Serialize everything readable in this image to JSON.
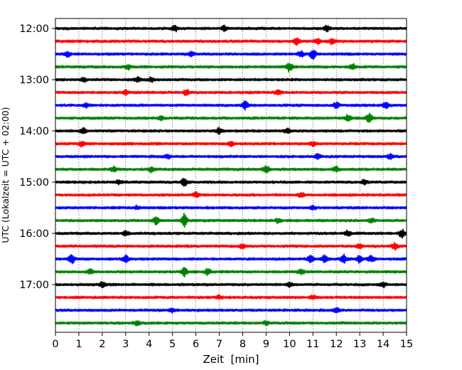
{
  "chart_data": {
    "type": "line",
    "title": "",
    "xlabel": "Zeit  [min]",
    "ylabel": "UTC (Lokalzeit = UTC + 02:00)",
    "xlim": [
      0,
      15
    ],
    "x_ticks": [
      "0",
      "1",
      "2",
      "3",
      "4",
      "5",
      "6",
      "7",
      "8",
      "9",
      "10",
      "11",
      "12",
      "13",
      "14",
      "15"
    ],
    "y_ticks": [
      {
        "label": "12:00",
        "row": 0
      },
      {
        "label": "13:00",
        "row": 4
      },
      {
        "label": "14:00",
        "row": 8
      },
      {
        "label": "15:00",
        "row": 12
      },
      {
        "label": "16:00",
        "row": 16
      },
      {
        "label": "17:00",
        "row": 20
      }
    ],
    "grid": {
      "x": true,
      "y": false,
      "style": "dotted"
    },
    "row_minutes": 15,
    "row_colors": [
      "#000000",
      "#ff0000",
      "#0000ff",
      "#008000"
    ],
    "rows": [
      {
        "start": "12:00",
        "bursts": [
          [
            5.1,
            0.6
          ],
          [
            7.2,
            0.5
          ],
          [
            11.6,
            0.6
          ]
        ]
      },
      {
        "start": "12:15",
        "bursts": [
          [
            10.3,
            0.8
          ],
          [
            11.2,
            0.6
          ],
          [
            11.8,
            0.5
          ]
        ]
      },
      {
        "start": "12:30",
        "bursts": [
          [
            0.5,
            0.6
          ],
          [
            11.0,
            1.1
          ],
          [
            10.5,
            0.6
          ],
          [
            5.8,
            0.5
          ]
        ]
      },
      {
        "start": "12:45",
        "bursts": [
          [
            10.0,
            1.0
          ],
          [
            3.1,
            0.5
          ],
          [
            12.7,
            0.6
          ]
        ]
      },
      {
        "start": "13:00",
        "bursts": [
          [
            1.2,
            0.5
          ],
          [
            3.5,
            0.5
          ],
          [
            4.1,
            0.5
          ]
        ]
      },
      {
        "start": "13:15",
        "bursts": [
          [
            3.0,
            0.5
          ],
          [
            5.6,
            0.6
          ],
          [
            9.5,
            0.5
          ]
        ]
      },
      {
        "start": "13:30",
        "bursts": [
          [
            8.1,
            0.9
          ],
          [
            12.0,
            0.7
          ],
          [
            14.1,
            0.7
          ],
          [
            1.3,
            0.5
          ]
        ]
      },
      {
        "start": "13:45",
        "bursts": [
          [
            13.4,
            1.0
          ],
          [
            12.5,
            0.7
          ],
          [
            4.5,
            0.5
          ]
        ]
      },
      {
        "start": "14:00",
        "bursts": [
          [
            1.2,
            0.5
          ],
          [
            7.0,
            0.6
          ],
          [
            9.9,
            0.5
          ]
        ]
      },
      {
        "start": "14:15",
        "bursts": [
          [
            1.1,
            0.5
          ],
          [
            7.5,
            0.5
          ],
          [
            11.0,
            0.5
          ]
        ]
      },
      {
        "start": "14:30",
        "bursts": [
          [
            4.8,
            0.5
          ],
          [
            11.2,
            0.5
          ],
          [
            14.3,
            0.6
          ]
        ]
      },
      {
        "start": "14:45",
        "bursts": [
          [
            2.5,
            0.6
          ],
          [
            4.1,
            0.6
          ],
          [
            9.0,
            0.7
          ],
          [
            12.0,
            0.5
          ]
        ]
      },
      {
        "start": "15:00",
        "bursts": [
          [
            5.5,
            0.9
          ],
          [
            2.7,
            0.5
          ],
          [
            13.2,
            0.5
          ]
        ]
      },
      {
        "start": "15:15",
        "bursts": [
          [
            6.0,
            0.5
          ],
          [
            10.5,
            0.5
          ]
        ]
      },
      {
        "start": "15:30",
        "bursts": [
          [
            3.5,
            0.4
          ],
          [
            11.0,
            0.4
          ]
        ]
      },
      {
        "start": "15:45",
        "bursts": [
          [
            5.5,
            1.5
          ],
          [
            4.3,
            0.8
          ],
          [
            13.5,
            0.5
          ],
          [
            9.5,
            0.5
          ]
        ]
      },
      {
        "start": "16:00",
        "bursts": [
          [
            14.8,
            0.9
          ],
          [
            12.5,
            0.6
          ],
          [
            3.0,
            0.5
          ]
        ]
      },
      {
        "start": "16:15",
        "bursts": [
          [
            14.5,
            0.7
          ],
          [
            8.0,
            0.5
          ],
          [
            13.0,
            0.5
          ]
        ]
      },
      {
        "start": "16:30",
        "bursts": [
          [
            0.7,
            1.0
          ],
          [
            3.0,
            0.9
          ],
          [
            10.9,
            0.9
          ],
          [
            11.5,
            0.8
          ],
          [
            12.3,
            1.0
          ],
          [
            13.0,
            0.9
          ],
          [
            13.5,
            0.7
          ]
        ]
      },
      {
        "start": "16:45",
        "bursts": [
          [
            5.5,
            1.0
          ],
          [
            6.5,
            0.7
          ],
          [
            1.5,
            0.5
          ],
          [
            10.5,
            0.5
          ]
        ]
      },
      {
        "start": "17:00",
        "bursts": [
          [
            2.0,
            0.5
          ],
          [
            10.0,
            0.5
          ],
          [
            14.0,
            0.5
          ]
        ]
      },
      {
        "start": "17:15",
        "bursts": [
          [
            7.0,
            0.4
          ],
          [
            11.0,
            0.4
          ]
        ]
      },
      {
        "start": "17:30",
        "bursts": [
          [
            5.0,
            0.4
          ],
          [
            12.0,
            0.4
          ]
        ]
      },
      {
        "start": "17:45",
        "bursts": [
          [
            3.5,
            0.5
          ],
          [
            9.0,
            0.5
          ]
        ]
      }
    ]
  }
}
